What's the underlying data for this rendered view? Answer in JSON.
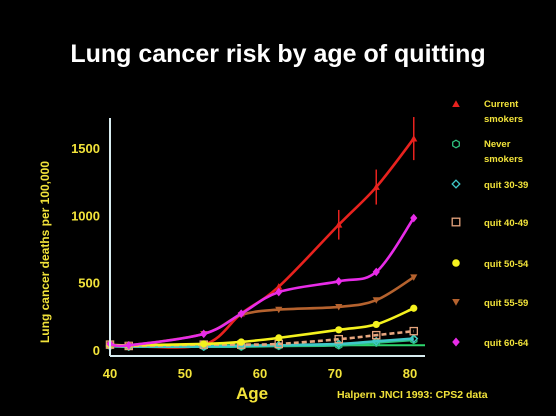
{
  "chart_data": {
    "type": "line",
    "title": "Lung cancer risk by age of quitting",
    "xlabel": "Age",
    "ylabel": "Lung cancer deaths per 100,000",
    "xlim": [
      40,
      82
    ],
    "ylim": [
      -50,
      1750
    ],
    "x_ticks": [
      "40",
      "50",
      "60",
      "70",
      "80"
    ],
    "y_ticks": [
      "0",
      "500",
      "1000",
      "1500"
    ],
    "x_tick_values": [
      40,
      50,
      60,
      70,
      80
    ],
    "y_tick_values": [
      0,
      500,
      1000,
      1500
    ],
    "grid": false,
    "legend_position": "right",
    "annotation": "Halpern JNCI 1993: CPS2 data",
    "series": [
      {
        "name": "Current smokers",
        "marker": "triangle-up",
        "color": "#e8221e",
        "line_style": "solid",
        "hidden": false,
        "x": [
          40,
          42.5,
          52.5,
          57.5,
          62.5,
          70.5,
          75.5,
          80.5
        ],
        "y": [
          40,
          30,
          40,
          270,
          470,
          930,
          1210,
          1570
        ],
        "error": [
          0,
          0,
          0,
          0,
          0,
          110,
          130,
          160
        ]
      },
      {
        "name": "Never smokers",
        "marker": "hexagon-open",
        "color": "#2ec27e",
        "line_style": "solid",
        "hidden": false,
        "x": [
          40,
          42.5,
          52.5,
          57.5,
          62.5,
          70.5,
          75.5,
          80.5
        ],
        "y": [
          30,
          25,
          25,
          25,
          30,
          35,
          55,
          75
        ],
        "error": []
      },
      {
        "name": "quit 30-39",
        "marker": "diamond-open",
        "color": "#3fc8c8",
        "line_style": "solid",
        "hidden": false,
        "x": [
          40,
          42.5,
          52.5,
          57.5,
          62.5,
          70.5,
          75.5,
          80.5
        ],
        "y": [
          30,
          25,
          25,
          30,
          35,
          45,
          65,
          85
        ],
        "error": []
      },
      {
        "name": "quit 40-49",
        "marker": "square-open",
        "color": "#e6a57e",
        "line_style": "dashed",
        "hidden": false,
        "x": [
          40,
          42.5,
          52.5,
          57.5,
          62.5,
          70.5,
          75.5,
          80.5
        ],
        "y": [
          40,
          30,
          40,
          40,
          45,
          80,
          110,
          140
        ],
        "error": []
      },
      {
        "name": "quit 50-54",
        "marker": "circle",
        "color": "#f5f21e",
        "line_style": "solid",
        "hidden": false,
        "x": [
          40,
          42.5,
          52.5,
          57.5,
          62.5,
          70.5,
          75.5,
          80.5
        ],
        "y": [
          40,
          35,
          45,
          60,
          90,
          150,
          190,
          310
        ],
        "error": []
      },
      {
        "name": "quit 55-59",
        "marker": "triangle-down",
        "color": "#b5622e",
        "line_style": "solid",
        "hidden": false,
        "x": [
          40,
          42.5,
          52.5,
          57.5,
          62.5,
          70.5,
          75.5,
          80.5
        ],
        "y": [
          40,
          35,
          120,
          260,
          300,
          320,
          370,
          540
        ],
        "error": []
      },
      {
        "name": "quit 60-64",
        "marker": "diamond",
        "color": "#e82ce8",
        "line_style": "solid",
        "hidden": false,
        "x": [
          40,
          42.5,
          52.5,
          57.5,
          62.5,
          70.5,
          75.5,
          80.5
        ],
        "y": [
          45,
          35,
          120,
          270,
          430,
          510,
          580,
          980
        ],
        "error": []
      }
    ],
    "reference_line": {
      "color": "#2dd86e",
      "y": 35
    }
  },
  "colors": {
    "background": "#000000",
    "axis": "#d8ecf0",
    "tick_label": "#f2e33a",
    "legend_text": "#f2e33a",
    "title": "#ffffff"
  }
}
